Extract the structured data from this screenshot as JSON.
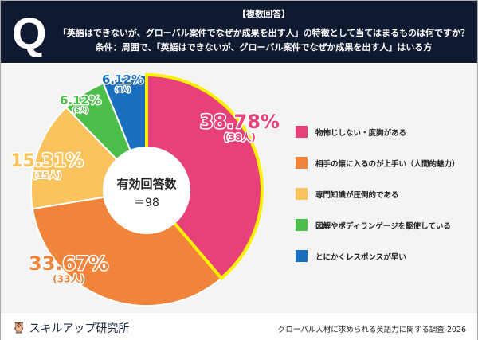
{
  "header": {
    "q": "Q",
    "tag": "【複数回答】",
    "question": "「英語はできないが、グローバル案件でなぜか成果を出す人」の特徴として当てはまるものは何ですか？",
    "condition": "条件：周囲で、「英語はできないが、グローバル案件でなぜか成果を出す人」はいる方"
  },
  "chart_data": {
    "type": "pie",
    "center_label": "有効回答数",
    "center_value": "＝98",
    "categories": [
      "物怖じしない・度胸がある",
      "相手の懐に入るのが上手い（人間的魅力）",
      "専門知識が圧倒的である",
      "図解やボディランゲージを駆使している",
      "とにかくレスポンスが早い"
    ],
    "values": [
      38.78,
      33.67,
      15.31,
      6.12,
      6.12
    ],
    "labels": [
      "38.78%",
      "33.67%",
      "15.31%",
      "6.12%",
      "6.12%"
    ],
    "counts": [
      "(38人)",
      "(33人)",
      "(15人)",
      "(6人)",
      "(6人)"
    ],
    "colors": [
      "#e8407a",
      "#f0843a",
      "#fbc35e",
      "#4cbf4a",
      "#1a6fbf"
    ],
    "highlight_color": "#fff200",
    "legend": "right"
  },
  "footer": {
    "brand": "スキルアップ研究所",
    "source": "グローバル人材に求められる英語力に関する調査 2026"
  }
}
